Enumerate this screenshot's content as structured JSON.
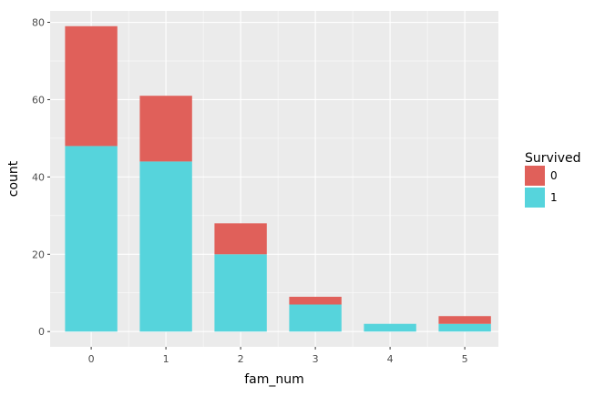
{
  "chart_data": {
    "type": "bar",
    "stacked": true,
    "xlabel": "fam_num",
    "ylabel": "count",
    "categories": [
      "0",
      "1",
      "2",
      "3",
      "4",
      "5"
    ],
    "category_positions": [
      0,
      1,
      2,
      3,
      4,
      5
    ],
    "series": [
      {
        "name": "1",
        "values": [
          48,
          44,
          20,
          7,
          2,
          2
        ]
      },
      {
        "name": "0",
        "values": [
          31,
          17,
          8,
          2,
          0,
          2
        ]
      }
    ],
    "xlim": [
      -0.55,
      5.45
    ],
    "ylim": [
      -3.95,
      82.95
    ],
    "xticks": [
      0,
      1,
      2,
      3,
      4,
      5
    ],
    "yticks": [
      0,
      20,
      40,
      60,
      80
    ],
    "xtick_labels": [
      "0",
      "1",
      "2",
      "3",
      "4",
      "5"
    ],
    "ytick_labels": [
      "0",
      "20",
      "40",
      "60",
      "80"
    ],
    "grid": true,
    "legend": {
      "title": "Survived",
      "position": "right",
      "entries": [
        {
          "label": "0",
          "color": "#e0605a"
        },
        {
          "label": "1",
          "color": "#56d4dc"
        }
      ]
    },
    "colors": {
      "0": "#e0605a",
      "1": "#56d4dc",
      "panel_background": "#ebebeb",
      "grid_major": "#ffffff"
    }
  }
}
